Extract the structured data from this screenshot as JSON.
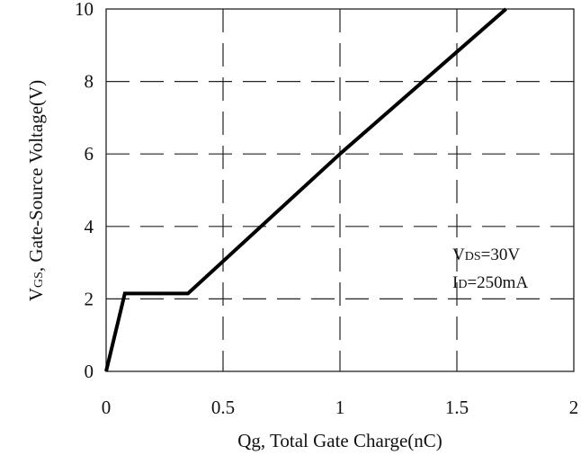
{
  "chart_data": {
    "type": "line",
    "xlabel": "Qg, Total Gate Charge(nC)",
    "ylabel": {
      "prefix": "V",
      "subscript": "GS",
      "rest": ", Gate-Source Voltage(V)"
    },
    "xlim": [
      0,
      2
    ],
    "ylim": [
      0,
      10
    ],
    "x_ticks": [
      0,
      0.5,
      1,
      1.5,
      2
    ],
    "x_tick_labels": [
      "0",
      "0.5",
      "1",
      "1.5",
      "2"
    ],
    "y_ticks": [
      0,
      2,
      4,
      6,
      8,
      10
    ],
    "y_tick_labels": [
      "0",
      "2",
      "4",
      "6",
      "8",
      "10"
    ],
    "grid": true,
    "grid_style": "dashed",
    "series": [
      {
        "x": [
          0,
          0.08,
          0.35,
          1.0,
          1.71
        ],
        "y": [
          0,
          2.15,
          2.15,
          6.0,
          10.0
        ]
      }
    ],
    "annotations": [
      {
        "prefix": "V",
        "subscript": "DS",
        "rest": "=30V"
      },
      {
        "prefix": "I",
        "subscript": "D",
        "rest": "=250mA"
      }
    ],
    "colors": {
      "line": "#000000",
      "grid": "#222222",
      "frame": "#222222"
    }
  }
}
